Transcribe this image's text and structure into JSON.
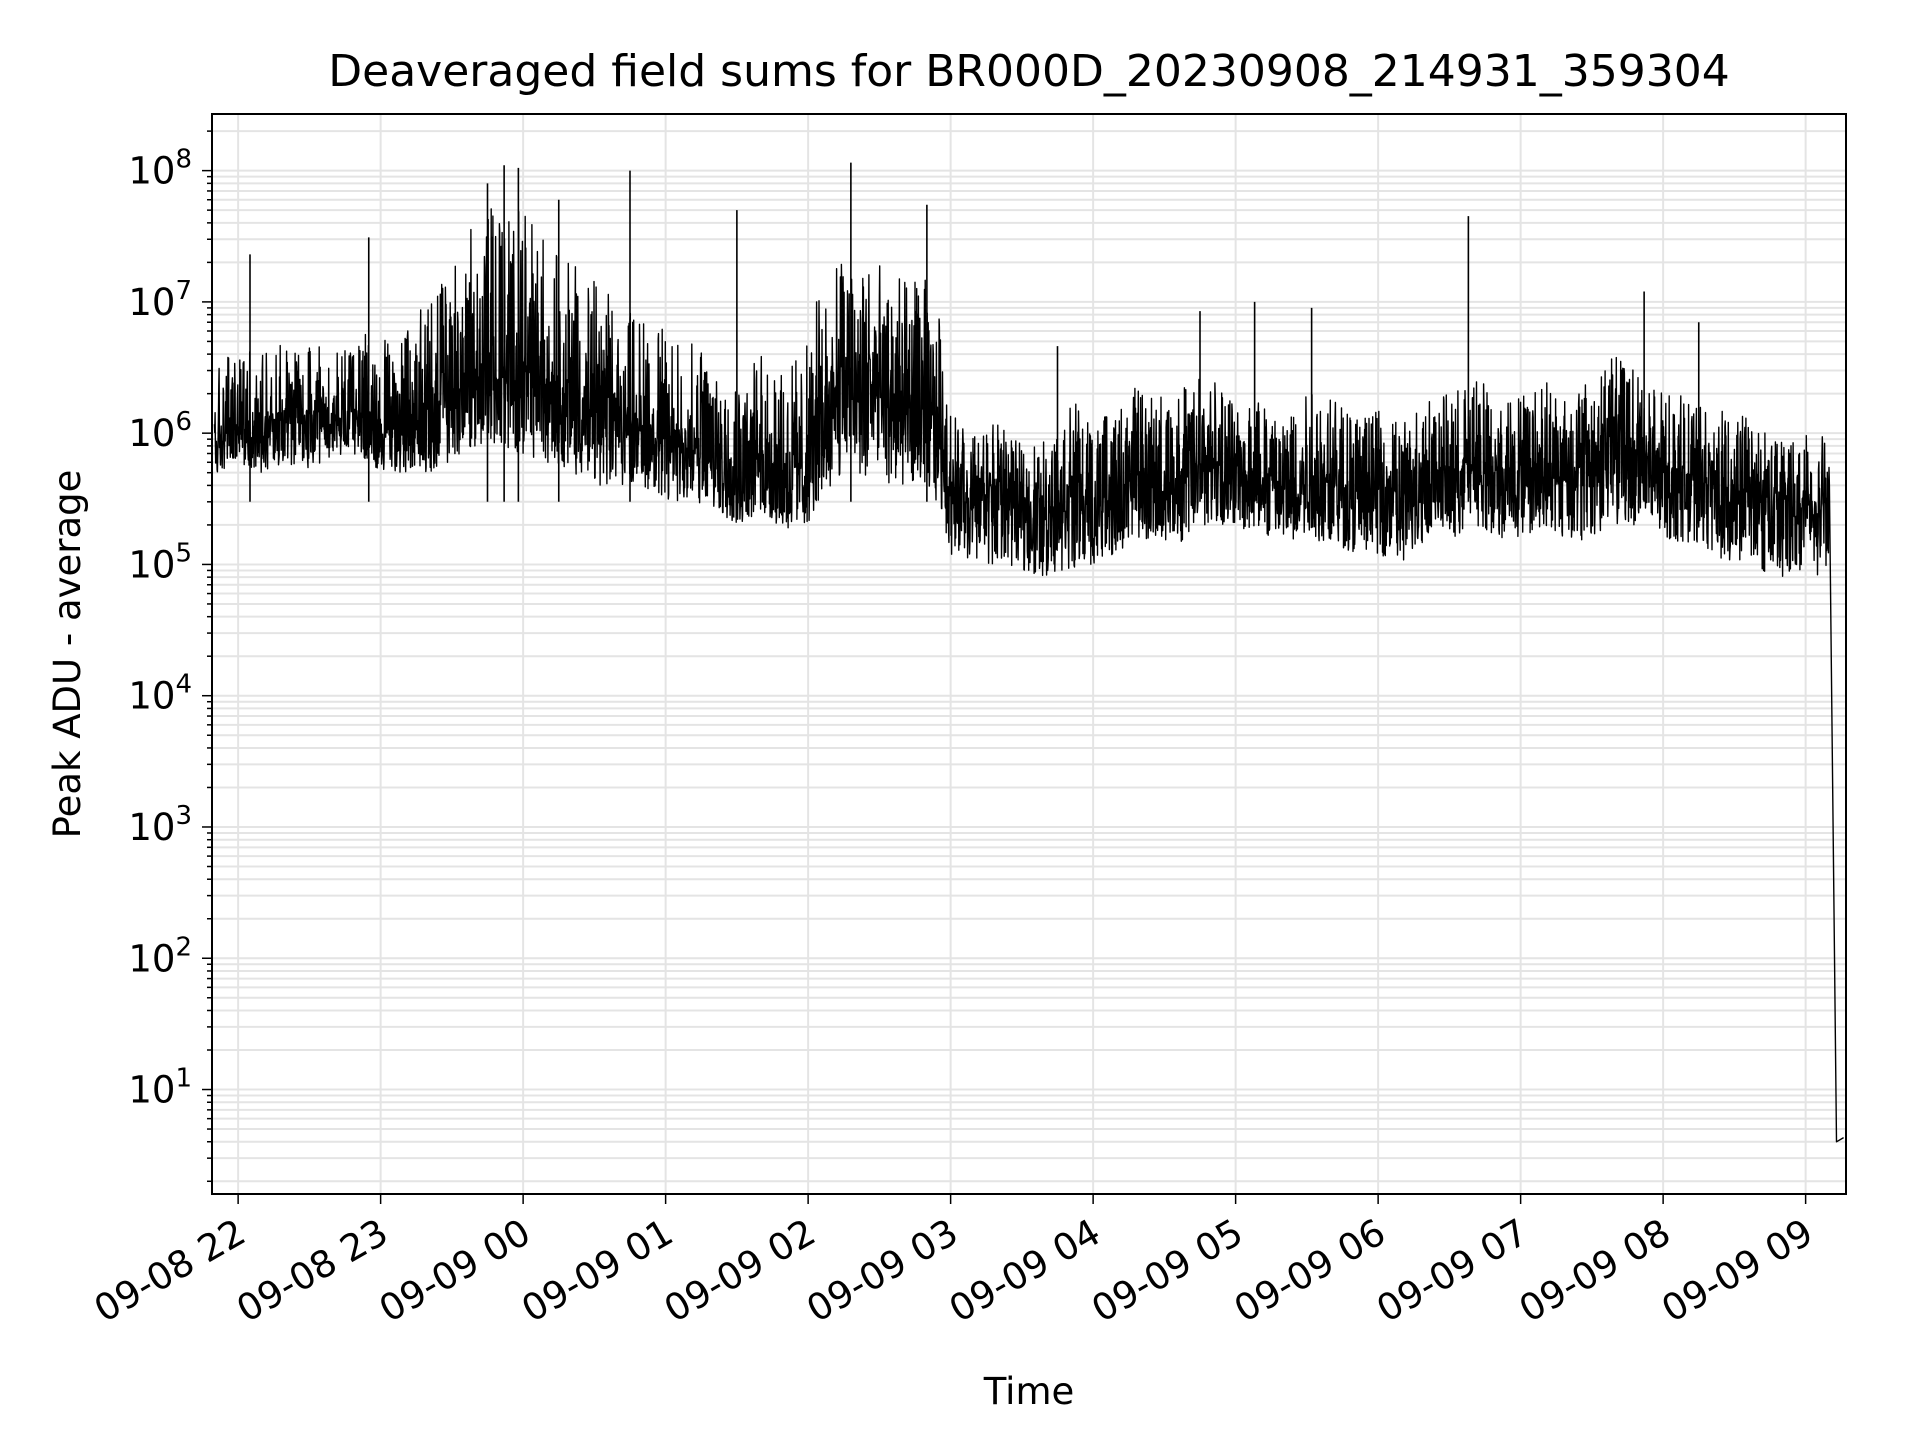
{
  "chart_data": {
    "type": "line",
    "title": "Deaveraged field sums for BR000D_20230908_214931_359304",
    "xlabel": "Time",
    "ylabel": "Peak ADU - average",
    "y_scale": "log",
    "ylim": [
      1.6,
      270000000
    ],
    "xlim": [
      "2023-09-08 21:49",
      "2023-09-09 09:17"
    ],
    "grid": true,
    "series_color": "#000000",
    "x_tick_labels": [
      "09-08 22",
      "09-08 23",
      "09-09 00",
      "09-09 01",
      "09-09 02",
      "09-09 03",
      "09-09 04",
      "09-09 05",
      "09-09 06",
      "09-09 07",
      "09-09 08",
      "09-09 09"
    ],
    "y_ticks": [
      {
        "value": 10,
        "exponent": "1"
      },
      {
        "value": 100,
        "exponent": "2"
      },
      {
        "value": 1000,
        "exponent": "3"
      },
      {
        "value": 10000,
        "exponent": "4"
      },
      {
        "value": 100000,
        "exponent": "5"
      },
      {
        "value": 1000000,
        "exponent": "6"
      },
      {
        "value": 10000000,
        "exponent": "7"
      },
      {
        "value": 100000000,
        "exponent": "8"
      }
    ],
    "series": [
      {
        "x": [
          "2023-09-08 21:50",
          "2023-09-08 22:00",
          "2023-09-08 22:10",
          "2023-09-08 22:20",
          "2023-09-08 22:30",
          "2023-09-08 22:40",
          "2023-09-08 22:50",
          "2023-09-08 23:00",
          "2023-09-08 23:10",
          "2023-09-08 23:20",
          "2023-09-08 23:30",
          "2023-09-08 23:40",
          "2023-09-08 23:50",
          "2023-09-09 00:00",
          "2023-09-09 00:10",
          "2023-09-09 00:20",
          "2023-09-09 00:30",
          "2023-09-09 00:40",
          "2023-09-09 00:50",
          "2023-09-09 01:00",
          "2023-09-09 01:10",
          "2023-09-09 01:20",
          "2023-09-09 01:30",
          "2023-09-09 01:40",
          "2023-09-09 01:50",
          "2023-09-09 02:00",
          "2023-09-09 02:10",
          "2023-09-09 02:20",
          "2023-09-09 02:30",
          "2023-09-09 02:40",
          "2023-09-09 02:50",
          "2023-09-09 03:00",
          "2023-09-09 03:10",
          "2023-09-09 03:20",
          "2023-09-09 03:30",
          "2023-09-09 03:40",
          "2023-09-09 03:50",
          "2023-09-09 04:00",
          "2023-09-09 04:10",
          "2023-09-09 04:20",
          "2023-09-09 04:30",
          "2023-09-09 04:40",
          "2023-09-09 04:50",
          "2023-09-09 05:00",
          "2023-09-09 05:10",
          "2023-09-09 05:20",
          "2023-09-09 05:30",
          "2023-09-09 05:40",
          "2023-09-09 05:50",
          "2023-09-09 06:00",
          "2023-09-09 06:10",
          "2023-09-09 06:20",
          "2023-09-09 06:30",
          "2023-09-09 06:40",
          "2023-09-09 06:50",
          "2023-09-09 07:00",
          "2023-09-09 07:10",
          "2023-09-09 07:20",
          "2023-09-09 07:30",
          "2023-09-09 07:40",
          "2023-09-09 07:50",
          "2023-09-09 08:00",
          "2023-09-09 08:10",
          "2023-09-09 08:20",
          "2023-09-09 08:30",
          "2023-09-09 08:40",
          "2023-09-09 08:50",
          "2023-09-09 09:00",
          "2023-09-09 09:05",
          "2023-09-09 09:10",
          "2023-09-09 09:13",
          "2023-09-09 09:16"
        ],
        "y": [
          800000,
          1200000,
          1000000,
          1500000,
          1000000,
          1200000,
          1500000,
          1000000,
          1300000,
          1200000,
          2000000,
          3000000,
          2500000,
          3000000,
          2500000,
          2000000,
          1500000,
          1500000,
          1000000,
          900000,
          800000,
          700000,
          600000,
          700000,
          500000,
          600000,
          2000000,
          2500000,
          2000000,
          1500000,
          1500000,
          400000,
          300000,
          400000,
          300000,
          250000,
          400000,
          300000,
          350000,
          500000,
          400000,
          500000,
          600000,
          500000,
          500000,
          400000,
          500000,
          400000,
          400000,
          400000,
          300000,
          500000,
          500000,
          600000,
          500000,
          500000,
          600000,
          500000,
          600000,
          1000000,
          700000,
          500000,
          500000,
          400000,
          400000,
          300000,
          250000,
          300000,
          200000,
          400000,
          4,
          4.3
        ],
        "low": [
          450000,
          600000,
          500000,
          600000,
          500000,
          600000,
          700000,
          500000,
          500000,
          500000,
          600000,
          800000,
          700000,
          700000,
          600000,
          500000,
          400000,
          400000,
          400000,
          300000,
          300000,
          250000,
          200000,
          200000,
          180000,
          200000,
          400000,
          500000,
          400000,
          400000,
          400000,
          120000,
          100000,
          100000,
          90000,
          80000,
          90000,
          100000,
          120000,
          150000,
          150000,
          150000,
          200000,
          200000,
          150000,
          150000,
          150000,
          150000,
          120000,
          120000,
          100000,
          150000,
          150000,
          200000,
          150000,
          150000,
          200000,
          150000,
          150000,
          200000,
          200000,
          150000,
          150000,
          120000,
          100000,
          90000,
          80000,
          90000,
          80000,
          100000,
          4,
          4.3
        ],
        "high": [
          3000000,
          5000000,
          4000000,
          5000000,
          5000000,
          4000000,
          6000000,
          5000000,
          6000000,
          10000000,
          20000000,
          40000000,
          60000000,
          50000000,
          30000000,
          20000000,
          15000000,
          10000000,
          8000000,
          6000000,
          5000000,
          4000000,
          3000000,
          4000000,
          3000000,
          5000000,
          20000000,
          30000000,
          20000000,
          15000000,
          15000000,
          1500000,
          1000000,
          1200000,
          800000,
          1000000,
          2000000,
          1200000,
          1500000,
          2500000,
          2000000,
          2500000,
          3000000,
          2000000,
          2000000,
          1500000,
          3000000,
          2000000,
          1500000,
          1500000,
          1200000,
          2000000,
          2000000,
          3000000,
          2000000,
          2000000,
          3000000,
          2000000,
          2500000,
          4000000,
          3000000,
          2000000,
          2000000,
          1500000,
          1500000,
          1200000,
          1000000,
          1200000,
          800000,
          1200000,
          4,
          4.3
        ]
      }
    ],
    "spikes": [
      {
        "x": "2023-09-08 22:05",
        "y": 23000000
      },
      {
        "x": "2023-09-08 22:55",
        "y": 31000000
      },
      {
        "x": "2023-09-08 23:45",
        "y": 80000000
      },
      {
        "x": "2023-09-08 23:52",
        "y": 110000000
      },
      {
        "x": "2023-09-08 23:58",
        "y": 105000000
      },
      {
        "x": "2023-09-09 00:15",
        "y": 60000000
      },
      {
        "x": "2023-09-09 00:45",
        "y": 100000000
      },
      {
        "x": "2023-09-09 01:30",
        "y": 50000000
      },
      {
        "x": "2023-09-09 02:18",
        "y": 115000000
      },
      {
        "x": "2023-09-09 02:50",
        "y": 55000000
      },
      {
        "x": "2023-09-09 03:45",
        "y": 4600000
      },
      {
        "x": "2023-09-09 04:45",
        "y": 8500000
      },
      {
        "x": "2023-09-09 05:08",
        "y": 10000000
      },
      {
        "x": "2023-09-09 05:32",
        "y": 9000000
      },
      {
        "x": "2023-09-09 06:38",
        "y": 45000000
      },
      {
        "x": "2023-09-09 07:52",
        "y": 12000000
      },
      {
        "x": "2023-09-09 08:15",
        "y": 7000000
      }
    ]
  }
}
